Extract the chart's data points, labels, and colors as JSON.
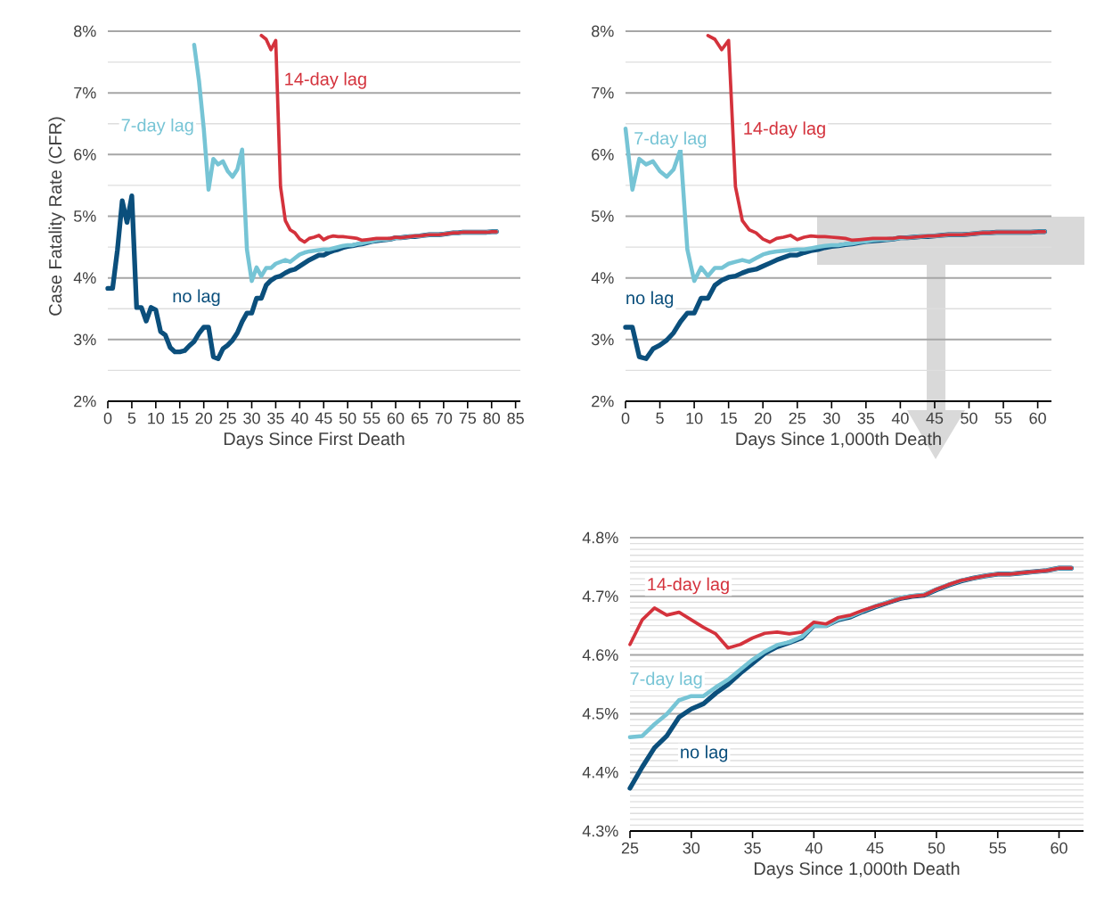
{
  "chart_data": [
    {
      "type": "line",
      "xlabel": "Days Since First Death",
      "ylabel": "Case Fatality Rate (CFR)",
      "x": [
        0,
        1,
        2,
        3,
        4,
        5,
        6,
        7,
        8,
        9,
        10,
        11,
        12,
        13,
        14,
        15,
        16,
        17,
        18,
        19,
        20,
        21,
        22,
        23,
        24,
        25,
        26,
        27,
        28,
        29,
        30,
        31,
        32,
        33,
        34,
        35,
        36,
        37,
        38,
        39,
        40,
        41,
        42,
        43,
        44,
        45,
        46,
        47,
        48,
        49,
        50,
        51,
        52,
        53,
        54,
        55,
        56,
        57,
        58,
        59,
        60,
        61,
        62,
        63,
        64,
        65,
        66,
        67,
        68,
        69,
        70,
        71,
        72,
        73,
        74,
        75,
        76,
        77,
        78,
        79,
        80,
        81
      ],
      "xlim": [
        0,
        86
      ],
      "xticks": [
        0,
        5,
        10,
        15,
        20,
        25,
        30,
        35,
        40,
        45,
        50,
        55,
        60,
        65,
        70,
        75,
        80,
        85
      ],
      "ylim": [
        2,
        8
      ],
      "yticks": [
        {
          "value": 2,
          "label": "2%"
        },
        {
          "value": 2.5,
          "label": null
        },
        {
          "value": 3,
          "label": "3%"
        },
        {
          "value": 3.5,
          "label": null
        },
        {
          "value": 4,
          "label": "4%"
        },
        {
          "value": 4.5,
          "label": null
        },
        {
          "value": 5,
          "label": "5%"
        },
        {
          "value": 5.5,
          "label": null
        },
        {
          "value": 6,
          "label": "6%"
        },
        {
          "value": 6.5,
          "label": null
        },
        {
          "value": 7,
          "label": "7%"
        },
        {
          "value": 7.5,
          "label": null
        },
        {
          "value": 8,
          "label": "8%"
        }
      ],
      "grid": "y",
      "marker": "none",
      "line_style": "solid",
      "series": [
        {
          "name": "no lag",
          "color": "#0b4f7c",
          "values": [
            3.83,
            3.83,
            4.45,
            5.25,
            4.9,
            5.33,
            3.52,
            3.52,
            3.3,
            3.52,
            3.48,
            3.13,
            3.07,
            2.87,
            2.8,
            2.8,
            2.82,
            2.9,
            2.97,
            3.1,
            3.2,
            3.2,
            2.72,
            2.69,
            2.85,
            2.91,
            2.99,
            3.11,
            3.29,
            3.43,
            3.43,
            3.67,
            3.67,
            3.88,
            3.96,
            4.01,
            4.03,
            4.08,
            4.12,
            4.14,
            4.19,
            4.24,
            4.29,
            4.33,
            4.37,
            4.37,
            4.41,
            4.44,
            4.46,
            4.49,
            4.51,
            4.52,
            4.54,
            4.55,
            4.57,
            4.59,
            4.6,
            4.61,
            4.62,
            4.63,
            4.65,
            4.65,
            4.66,
            4.67,
            4.67,
            4.68,
            4.69,
            4.7,
            4.7,
            4.7,
            4.71,
            4.72,
            4.73,
            4.73,
            4.74,
            4.74,
            4.74,
            4.74,
            4.74,
            4.74,
            4.75,
            4.75
          ]
        },
        {
          "name": "7-day lag",
          "color": "#76c4d5",
          "values": [
            null,
            null,
            null,
            null,
            null,
            null,
            null,
            null,
            null,
            null,
            null,
            null,
            null,
            null,
            null,
            null,
            null,
            null,
            7.78,
            7.2,
            6.42,
            5.43,
            5.93,
            5.84,
            5.89,
            5.73,
            5.64,
            5.76,
            6.08,
            4.46,
            3.95,
            4.17,
            4.03,
            4.16,
            4.16,
            4.23,
            4.26,
            4.29,
            4.26,
            4.32,
            4.38,
            4.41,
            4.43,
            4.44,
            4.45,
            4.46,
            4.46,
            4.48,
            4.5,
            4.52,
            4.53,
            4.53,
            4.55,
            4.56,
            4.58,
            4.59,
            4.61,
            4.62,
            4.62,
            4.63,
            4.65,
            4.65,
            4.66,
            4.67,
            4.68,
            4.68,
            4.69,
            4.7,
            4.7,
            4.7,
            4.71,
            4.72,
            4.73,
            4.73,
            4.74,
            4.74,
            4.74,
            4.74,
            4.74,
            4.74,
            4.75,
            4.75
          ]
        },
        {
          "name": "14-day lag",
          "color": "#d4323c",
          "values": [
            null,
            null,
            null,
            null,
            null,
            null,
            null,
            null,
            null,
            null,
            null,
            null,
            null,
            null,
            null,
            null,
            null,
            null,
            null,
            null,
            null,
            null,
            null,
            null,
            null,
            null,
            null,
            null,
            null,
            null,
            null,
            null,
            7.93,
            7.87,
            7.7,
            7.85,
            5.48,
            4.93,
            4.78,
            4.73,
            4.63,
            4.58,
            4.64,
            4.66,
            4.69,
            4.62,
            4.66,
            4.68,
            4.67,
            4.67,
            4.66,
            4.65,
            4.64,
            4.61,
            4.62,
            4.63,
            4.64,
            4.64,
            4.64,
            4.64,
            4.66,
            4.65,
            4.66,
            4.67,
            4.68,
            4.68,
            4.69,
            4.7,
            4.7,
            4.7,
            4.71,
            4.72,
            4.73,
            4.73,
            4.74,
            4.74,
            4.74,
            4.74,
            4.74,
            4.74,
            4.75,
            4.75
          ]
        }
      ]
    },
    {
      "type": "line",
      "xlabel": "Days Since 1,000th Death",
      "x": [
        0,
        1,
        2,
        3,
        4,
        5,
        6,
        7,
        8,
        9,
        10,
        11,
        12,
        13,
        14,
        15,
        16,
        17,
        18,
        19,
        20,
        21,
        22,
        23,
        24,
        25,
        26,
        27,
        28,
        29,
        30,
        31,
        32,
        33,
        34,
        35,
        36,
        37,
        38,
        39,
        40,
        41,
        42,
        43,
        44,
        45,
        46,
        47,
        48,
        49,
        50,
        51,
        52,
        53,
        54,
        55,
        56,
        57,
        58,
        59,
        60,
        61
      ],
      "xlim": [
        0,
        62
      ],
      "xticks": [
        0,
        5,
        10,
        15,
        20,
        25,
        30,
        35,
        40,
        45,
        50,
        55,
        60
      ],
      "ylim": [
        2,
        8
      ],
      "yticks": [
        {
          "value": 2,
          "label": "2%"
        },
        {
          "value": 2.5,
          "label": null
        },
        {
          "value": 3,
          "label": "3%"
        },
        {
          "value": 3.5,
          "label": null
        },
        {
          "value": 4,
          "label": "4%"
        },
        {
          "value": 4.5,
          "label": null
        },
        {
          "value": 5,
          "label": "5%"
        },
        {
          "value": 5.5,
          "label": null
        },
        {
          "value": 6,
          "label": "6%"
        },
        {
          "value": 6.5,
          "label": null
        },
        {
          "value": 7,
          "label": "7%"
        },
        {
          "value": 7.5,
          "label": null
        },
        {
          "value": 8,
          "label": "8%"
        }
      ],
      "grid": "y",
      "marker": "none",
      "line_style": "solid",
      "series": [
        {
          "name": "no lag",
          "color": "#0b4f7c",
          "values": [
            3.2,
            3.2,
            2.72,
            2.69,
            2.85,
            2.91,
            2.99,
            3.11,
            3.29,
            3.43,
            3.43,
            3.67,
            3.67,
            3.88,
            3.96,
            4.01,
            4.03,
            4.08,
            4.12,
            4.14,
            4.19,
            4.24,
            4.29,
            4.33,
            4.37,
            4.37,
            4.41,
            4.44,
            4.46,
            4.49,
            4.51,
            4.52,
            4.54,
            4.55,
            4.57,
            4.59,
            4.6,
            4.61,
            4.62,
            4.63,
            4.65,
            4.65,
            4.66,
            4.67,
            4.67,
            4.68,
            4.69,
            4.7,
            4.7,
            4.7,
            4.71,
            4.72,
            4.73,
            4.73,
            4.74,
            4.74,
            4.74,
            4.74,
            4.74,
            4.74,
            4.75,
            4.75
          ]
        },
        {
          "name": "7-day lag",
          "color": "#76c4d5",
          "values": [
            6.42,
            5.43,
            5.93,
            5.84,
            5.89,
            5.73,
            5.64,
            5.76,
            6.08,
            4.46,
            3.95,
            4.17,
            4.03,
            4.16,
            4.16,
            4.23,
            4.26,
            4.29,
            4.26,
            4.32,
            4.38,
            4.41,
            4.43,
            4.44,
            4.45,
            4.46,
            4.46,
            4.48,
            4.5,
            4.52,
            4.53,
            4.53,
            4.55,
            4.56,
            4.58,
            4.59,
            4.61,
            4.62,
            4.62,
            4.63,
            4.65,
            4.65,
            4.66,
            4.67,
            4.68,
            4.68,
            4.69,
            4.7,
            4.7,
            4.7,
            4.71,
            4.72,
            4.73,
            4.73,
            4.74,
            4.74,
            4.74,
            4.74,
            4.74,
            4.74,
            4.75,
            4.75
          ]
        },
        {
          "name": "14-day lag",
          "color": "#d4323c",
          "values": [
            null,
            null,
            null,
            null,
            null,
            null,
            null,
            null,
            null,
            null,
            null,
            null,
            7.93,
            7.87,
            7.7,
            7.85,
            5.48,
            4.93,
            4.78,
            4.73,
            4.63,
            4.58,
            4.64,
            4.66,
            4.69,
            4.62,
            4.66,
            4.68,
            4.67,
            4.67,
            4.66,
            4.65,
            4.64,
            4.61,
            4.62,
            4.63,
            4.64,
            4.64,
            4.64,
            4.64,
            4.66,
            4.65,
            4.66,
            4.67,
            4.68,
            4.68,
            4.69,
            4.7,
            4.7,
            4.7,
            4.71,
            4.72,
            4.73,
            4.73,
            4.74,
            4.74,
            4.74,
            4.74,
            4.74,
            4.74,
            4.75,
            4.75
          ]
        }
      ]
    },
    {
      "type": "line",
      "xlabel": "Days Since 1,000th Death",
      "x": [
        25,
        26,
        27,
        28,
        29,
        30,
        31,
        32,
        33,
        34,
        35,
        36,
        37,
        38,
        39,
        40,
        41,
        42,
        43,
        44,
        45,
        46,
        47,
        48,
        49,
        50,
        51,
        52,
        53,
        54,
        55,
        56,
        57,
        58,
        59,
        60,
        61
      ],
      "xlim": [
        25,
        62
      ],
      "xticks": [
        25,
        30,
        35,
        40,
        45,
        50,
        55,
        60
      ],
      "ylim": [
        4.3,
        4.8
      ],
      "yticks": [
        {
          "value": 4.3,
          "label": "4.3%"
        },
        {
          "value": 4.31,
          "label": null
        },
        {
          "value": 4.32,
          "label": null
        },
        {
          "value": 4.33,
          "label": null
        },
        {
          "value": 4.34,
          "label": null
        },
        {
          "value": 4.35,
          "label": null
        },
        {
          "value": 4.36,
          "label": null
        },
        {
          "value": 4.37,
          "label": null
        },
        {
          "value": 4.38,
          "label": null
        },
        {
          "value": 4.39,
          "label": null
        },
        {
          "value": 4.4,
          "label": "4.4%"
        },
        {
          "value": 4.41,
          "label": null
        },
        {
          "value": 4.42,
          "label": null
        },
        {
          "value": 4.43,
          "label": null
        },
        {
          "value": 4.44,
          "label": null
        },
        {
          "value": 4.45,
          "label": null
        },
        {
          "value": 4.46,
          "label": null
        },
        {
          "value": 4.47,
          "label": null
        },
        {
          "value": 4.48,
          "label": null
        },
        {
          "value": 4.49,
          "label": null
        },
        {
          "value": 4.5,
          "label": "4.5%"
        },
        {
          "value": 4.51,
          "label": null
        },
        {
          "value": 4.52,
          "label": null
        },
        {
          "value": 4.53,
          "label": null
        },
        {
          "value": 4.54,
          "label": null
        },
        {
          "value": 4.55,
          "label": null
        },
        {
          "value": 4.56,
          "label": null
        },
        {
          "value": 4.57,
          "label": null
        },
        {
          "value": 4.58,
          "label": null
        },
        {
          "value": 4.59,
          "label": null
        },
        {
          "value": 4.6,
          "label": "4.6%"
        },
        {
          "value": 4.61,
          "label": null
        },
        {
          "value": 4.62,
          "label": null
        },
        {
          "value": 4.63,
          "label": null
        },
        {
          "value": 4.64,
          "label": null
        },
        {
          "value": 4.65,
          "label": null
        },
        {
          "value": 4.66,
          "label": null
        },
        {
          "value": 4.67,
          "label": null
        },
        {
          "value": 4.68,
          "label": null
        },
        {
          "value": 4.69,
          "label": null
        },
        {
          "value": 4.7,
          "label": "4.7%"
        },
        {
          "value": 4.71,
          "label": null
        },
        {
          "value": 4.72,
          "label": null
        },
        {
          "value": 4.73,
          "label": null
        },
        {
          "value": 4.74,
          "label": null
        },
        {
          "value": 4.75,
          "label": null
        },
        {
          "value": 4.76,
          "label": null
        },
        {
          "value": 4.77,
          "label": null
        },
        {
          "value": 4.78,
          "label": null
        },
        {
          "value": 4.79,
          "label": null
        },
        {
          "value": 4.8,
          "label": "4.8%"
        }
      ],
      "grid": "y",
      "marker": "none",
      "line_style": "solid",
      "series": [
        {
          "name": "no lag",
          "color": "#0b4f7c",
          "values": [
            4.373,
            4.409,
            4.442,
            4.462,
            4.494,
            4.508,
            4.517,
            4.535,
            4.55,
            4.569,
            4.586,
            4.603,
            4.614,
            4.621,
            4.629,
            4.65,
            4.65,
            4.66,
            4.665,
            4.674,
            4.682,
            4.689,
            4.696,
            4.7,
            4.702,
            4.711,
            4.719,
            4.726,
            4.731,
            4.735,
            4.738,
            4.738,
            4.74,
            4.742,
            4.744,
            4.748,
            4.748
          ]
        },
        {
          "name": "7-day lag",
          "color": "#76c4d5",
          "values": [
            4.46,
            4.462,
            4.482,
            4.499,
            4.523,
            4.53,
            4.53,
            4.545,
            4.558,
            4.575,
            4.592,
            4.606,
            4.617,
            4.622,
            4.631,
            4.65,
            4.65,
            4.661,
            4.666,
            4.675,
            4.683,
            4.69,
            4.697,
            4.701,
            4.703,
            4.712,
            4.72,
            4.727,
            4.731,
            4.735,
            4.738,
            4.738,
            4.74,
            4.742,
            4.744,
            4.748,
            4.748
          ]
        },
        {
          "name": "14-day lag",
          "color": "#d4323c",
          "values": [
            4.618,
            4.66,
            4.68,
            4.668,
            4.673,
            4.66,
            4.647,
            4.636,
            4.612,
            4.618,
            4.629,
            4.637,
            4.639,
            4.636,
            4.639,
            4.656,
            4.653,
            4.664,
            4.668,
            4.676,
            4.683,
            4.689,
            4.696,
            4.7,
            4.702,
            4.712,
            4.72,
            4.727,
            4.731,
            4.735,
            4.738,
            4.738,
            4.74,
            4.742,
            4.744,
            4.748,
            4.748
          ]
        }
      ]
    }
  ]
}
